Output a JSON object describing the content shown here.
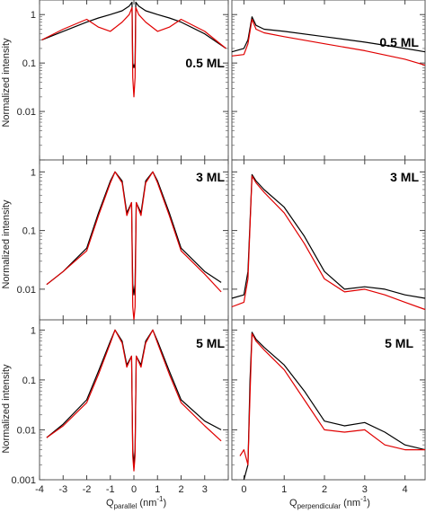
{
  "chart_data": [
    {
      "type": "line",
      "panel": "left-top",
      "label": "0.5 ML",
      "ylabel": "Normalized intensity",
      "xlabel": "",
      "xlim": [
        -4,
        4
      ],
      "ylim": [
        0.001,
        2
      ],
      "log_y": true,
      "series": [
        {
          "color": "#000000",
          "x": [
            -3.9,
            -3,
            -2,
            -1.5,
            -1,
            -0.5,
            -0.2,
            -0.08,
            -0.05,
            0,
            0.05,
            0.08,
            0.2,
            0.5,
            1,
            1.5,
            2,
            3,
            3.9
          ],
          "y": [
            0.3,
            0.45,
            0.7,
            0.85,
            1.0,
            1.2,
            1.5,
            1.8,
            0.1,
            0.08,
            0.1,
            1.8,
            1.5,
            1.2,
            1.0,
            0.85,
            0.7,
            0.4,
            0.2
          ]
        },
        {
          "color": "#e00000",
          "x": [
            -3.9,
            -3,
            -2,
            -1.5,
            -1,
            -0.5,
            -0.2,
            -0.08,
            -0.05,
            0,
            0.05,
            0.08,
            0.2,
            0.5,
            1,
            1.5,
            2,
            3,
            3.9
          ],
          "y": [
            0.3,
            0.5,
            0.8,
            0.55,
            0.45,
            0.7,
            1.0,
            1.4,
            0.05,
            0.02,
            0.05,
            1.4,
            1.0,
            0.7,
            0.45,
            0.55,
            0.8,
            0.45,
            0.2
          ]
        }
      ],
      "ticks_y": [
        "1",
        "0.1",
        "0.01"
      ]
    },
    {
      "type": "line",
      "panel": "right-top",
      "label": "0.5 ML",
      "xlabel": "",
      "xlim": [
        -0.3,
        4.5
      ],
      "ylim": [
        0.001,
        2
      ],
      "log_y": true,
      "series": [
        {
          "color": "#000000",
          "x": [
            -0.3,
            0,
            0.1,
            0.2,
            0.3,
            0.5,
            1,
            2,
            3,
            4,
            4.5
          ],
          "y": [
            0.17,
            0.2,
            0.3,
            0.9,
            0.6,
            0.5,
            0.45,
            0.35,
            0.27,
            0.2,
            0.17
          ]
        },
        {
          "color": "#e00000",
          "x": [
            -0.3,
            0,
            0.1,
            0.2,
            0.3,
            0.5,
            1,
            2,
            3,
            4,
            4.5
          ],
          "y": [
            0.14,
            0.15,
            0.25,
            0.8,
            0.5,
            0.42,
            0.35,
            0.25,
            0.18,
            0.12,
            0.09
          ]
        }
      ]
    },
    {
      "type": "line",
      "panel": "left-middle",
      "label": "3 ML",
      "ylabel": "Normalized intensity",
      "xlim": [
        -4,
        4
      ],
      "ylim": [
        0.005,
        2
      ],
      "log_y": true,
      "series": [
        {
          "color": "#000000",
          "x": [
            -3.7,
            -3,
            -2,
            -1.5,
            -1,
            -0.8,
            -0.5,
            -0.3,
            -0.1,
            -0.05,
            0,
            0.05,
            0.1,
            0.3,
            0.5,
            0.8,
            1,
            1.5,
            2,
            3,
            3.7
          ],
          "y": [
            0.012,
            0.02,
            0.05,
            0.2,
            0.7,
            1.0,
            0.7,
            0.2,
            0.3,
            0.012,
            0.008,
            0.012,
            0.3,
            0.2,
            0.7,
            1.0,
            0.7,
            0.2,
            0.05,
            0.02,
            0.013
          ]
        },
        {
          "color": "#e00000",
          "x": [
            -3.7,
            -3,
            -2,
            -1.5,
            -1,
            -0.8,
            -0.5,
            -0.3,
            -0.1,
            -0.05,
            0,
            0.05,
            0.1,
            0.3,
            0.5,
            0.8,
            1,
            1.5,
            2,
            3,
            3.7
          ],
          "y": [
            0.012,
            0.02,
            0.045,
            0.18,
            0.65,
            1.0,
            0.65,
            0.18,
            0.3,
            0.005,
            0.003,
            0.005,
            0.3,
            0.18,
            0.65,
            1.0,
            0.65,
            0.18,
            0.045,
            0.018,
            0.009
          ]
        }
      ],
      "ticks_y": [
        "1",
        "0.1",
        "0.01"
      ]
    },
    {
      "type": "line",
      "panel": "right-middle",
      "label": "3 ML",
      "xlim": [
        -0.3,
        4.5
      ],
      "ylim": [
        0.003,
        2
      ],
      "log_y": true,
      "series": [
        {
          "color": "#000000",
          "x": [
            -0.3,
            0,
            0.1,
            0.2,
            0.3,
            0.5,
            1,
            1.5,
            2,
            2.5,
            3,
            3.5,
            4,
            4.5
          ],
          "y": [
            0.007,
            0.008,
            0.02,
            0.9,
            0.7,
            0.5,
            0.25,
            0.08,
            0.02,
            0.01,
            0.011,
            0.01,
            0.008,
            0.007
          ]
        },
        {
          "color": "#e00000",
          "x": [
            -0.3,
            0,
            0.1,
            0.2,
            0.3,
            0.5,
            1,
            1.5,
            2,
            2.5,
            3,
            3.5,
            4,
            4.5
          ],
          "y": [
            0.005,
            0.006,
            0.015,
            0.85,
            0.65,
            0.45,
            0.2,
            0.06,
            0.015,
            0.009,
            0.01,
            0.008,
            0.006,
            0.0045
          ]
        }
      ]
    },
    {
      "type": "line",
      "panel": "left-bottom",
      "label": "5 ML",
      "ylabel": "Normalized intensity",
      "xlabel": "Q parallel (nm-1)",
      "xlim": [
        -4,
        4
      ],
      "ylim": [
        0.001,
        2
      ],
      "log_y": true,
      "series": [
        {
          "color": "#000000",
          "x": [
            -3.7,
            -3,
            -2,
            -1.5,
            -1,
            -0.8,
            -0.5,
            -0.3,
            -0.1,
            -0.05,
            0,
            0.05,
            0.1,
            0.3,
            0.5,
            0.8,
            1,
            1.5,
            2,
            3,
            3.7
          ],
          "y": [
            0.007,
            0.013,
            0.04,
            0.15,
            0.6,
            1.0,
            0.6,
            0.2,
            0.3,
            0.004,
            0.002,
            0.004,
            0.3,
            0.2,
            0.6,
            1.0,
            0.6,
            0.15,
            0.04,
            0.015,
            0.01
          ]
        },
        {
          "color": "#e00000",
          "x": [
            -3.7,
            -3,
            -2,
            -1.5,
            -1,
            -0.8,
            -0.5,
            -0.3,
            -0.1,
            -0.05,
            0,
            0.05,
            0.1,
            0.3,
            0.5,
            0.8,
            1,
            1.5,
            2,
            3,
            3.7
          ],
          "y": [
            0.007,
            0.012,
            0.035,
            0.13,
            0.55,
            1.0,
            0.55,
            0.18,
            0.3,
            0.003,
            0.0015,
            0.003,
            0.3,
            0.18,
            0.55,
            1.0,
            0.55,
            0.13,
            0.035,
            0.012,
            0.006
          ]
        }
      ],
      "ticks_y": [
        "1",
        "0.1",
        "0.01",
        "0.001"
      ],
      "ticks_x": [
        "-4",
        "-3",
        "-2",
        "-1",
        "0",
        "1",
        "2",
        "3"
      ]
    },
    {
      "type": "line",
      "panel": "right-bottom",
      "label": "5 ML",
      "xlabel": "Q perpendicular (nm-1)",
      "xlim": [
        -0.3,
        4.5
      ],
      "ylim": [
        0.001,
        2
      ],
      "log_y": true,
      "series": [
        {
          "color": "#000000",
          "x": [
            0,
            0.1,
            0.15,
            0.2,
            0.3,
            0.5,
            1,
            1.5,
            2,
            2.5,
            3,
            3.5,
            4,
            4.5
          ],
          "y": [
            0.001,
            0.002,
            0.1,
            0.9,
            0.65,
            0.45,
            0.2,
            0.06,
            0.015,
            0.012,
            0.014,
            0.009,
            0.005,
            0.004
          ]
        },
        {
          "color": "#e00000",
          "x": [
            -0.1,
            0,
            0.1,
            0.15,
            0.2,
            0.3,
            0.5,
            1,
            1.5,
            2,
            2.5,
            3,
            3.5,
            4,
            4.5
          ],
          "y": [
            0.003,
            0.004,
            0.002,
            0.05,
            0.85,
            0.6,
            0.4,
            0.16,
            0.04,
            0.01,
            0.009,
            0.01,
            0.005,
            0.004,
            0.004
          ]
        }
      ],
      "ticks_x": [
        "0",
        "1",
        "2",
        "3",
        "4"
      ]
    }
  ],
  "axis_text": {
    "ylabel_top": "Normalized intensity",
    "ylabel_middle": "Normalized intensity",
    "ylabel_bottom": "Normalized intensity",
    "x_left_main": "Q",
    "x_left_sub": "parallel",
    "x_left_unit": "(nm",
    "x_left_sup": "-1",
    "x_left_close": ")",
    "x_right_main": "Q",
    "x_right_sub": "perpendicular",
    "x_right_unit": "(nm",
    "x_right_sup": "-1",
    "x_right_close": ")"
  },
  "labels": {
    "lt": "0.5 ML",
    "rt": "0.5 ML",
    "lm": "3 ML",
    "rm": "3 ML",
    "lb": "5 ML",
    "rb": "5 ML"
  },
  "ticks": {
    "lt": [
      "1",
      "0.1",
      "0.01"
    ],
    "lm": [
      "1",
      "0.1",
      "0.01"
    ],
    "lb": [
      "1",
      "0.1",
      "0.01",
      "0.001"
    ],
    "xl": [
      "-4",
      "-3",
      "-2",
      "-1",
      "0",
      "1",
      "2",
      "3"
    ],
    "xr": [
      "0",
      "1",
      "2",
      "3",
      "4"
    ]
  }
}
